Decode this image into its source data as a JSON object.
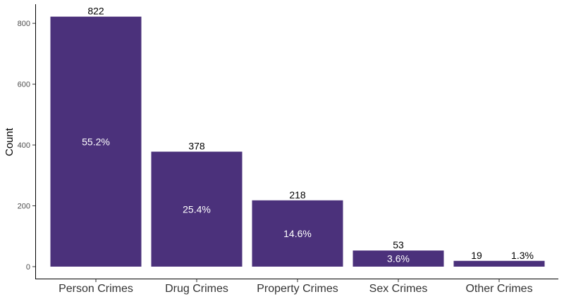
{
  "chart_data": {
    "type": "bar",
    "categories": [
      "Person Crimes",
      "Drug Crimes",
      "Property Crimes",
      "Sex Crimes",
      "Other Crimes"
    ],
    "values": [
      822,
      378,
      218,
      53,
      19
    ],
    "data_labels": [
      "822",
      "378",
      "218",
      "53",
      "19"
    ],
    "percent_labels": [
      "55.2%",
      "25.4%",
      "14.6%",
      "3.6%",
      "1.3%"
    ],
    "title": "",
    "xlabel": "",
    "ylabel": "Count",
    "ylim": [
      0,
      860
    ],
    "yticks": [
      0,
      200,
      400,
      600,
      800
    ],
    "ytick_labels": [
      "0",
      "200",
      "400",
      "600",
      "800"
    ],
    "grid": false,
    "legend": "none",
    "bar_color": "#4B317B"
  }
}
